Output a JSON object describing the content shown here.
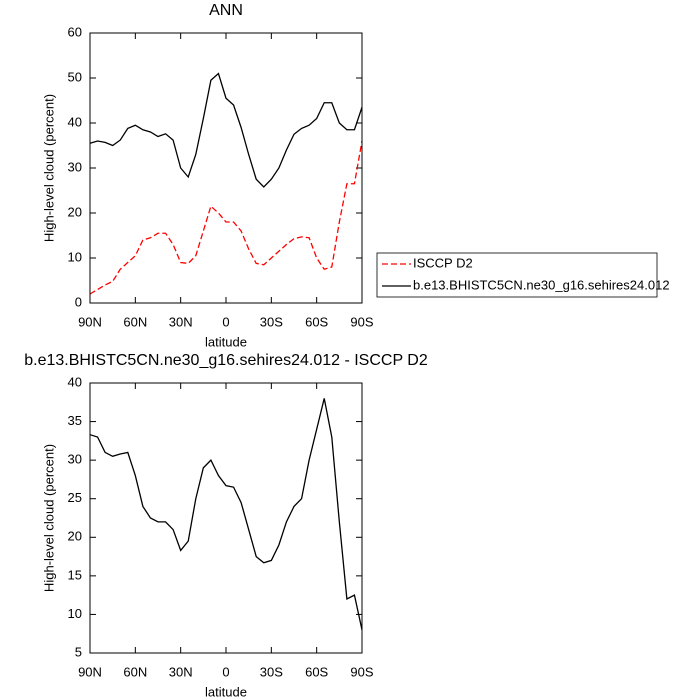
{
  "chart_data": [
    {
      "type": "line",
      "title": "ANN",
      "x_label": "latitude",
      "y_label": "High-level cloud (percent)",
      "x": [
        90,
        85,
        80,
        75,
        70,
        65,
        60,
        55,
        50,
        45,
        40,
        35,
        30,
        25,
        20,
        15,
        10,
        5,
        0,
        -5,
        -10,
        -15,
        -20,
        -25,
        -30,
        -35,
        -40,
        -45,
        -50,
        -55,
        -60,
        -65,
        -70,
        -75,
        -80,
        -85,
        -90
      ],
      "series": [
        {
          "name": "ISCCP D2",
          "color": "#ff0000",
          "style": "dashed",
          "values": [
            2,
            3,
            4,
            4.8,
            7.5,
            9,
            10.5,
            14,
            14.5,
            15.5,
            15.5,
            13,
            9,
            8.8,
            10.5,
            16,
            21.5,
            20,
            18,
            18,
            16,
            12,
            8.8,
            8.5,
            10,
            11.5,
            13,
            14.3,
            14.7,
            14.5,
            10,
            7.5,
            8,
            18,
            26.5,
            26.5,
            36
          ]
        },
        {
          "name": "b.e13.BHISTC5CN.ne30_g16.sehires24.012",
          "color": "#000000",
          "style": "solid",
          "values": [
            35.5,
            36,
            35.7,
            35,
            36.2,
            38.8,
            39.5,
            38.5,
            38,
            37,
            37.6,
            36.2,
            30,
            28,
            33,
            41,
            49.5,
            51,
            45.5,
            44,
            39,
            33,
            27.5,
            25.8,
            27.5,
            30,
            34,
            37.5,
            38.8,
            39.5,
            41,
            44.5,
            44.5,
            40,
            38.5,
            38.5,
            43.5
          ]
        }
      ],
      "xlim": [
        90,
        -90
      ],
      "xticks": [
        {
          "value": 90,
          "label": "90N"
        },
        {
          "value": 60,
          "label": "60N"
        },
        {
          "value": 30,
          "label": "30N"
        },
        0,
        {
          "value": -30,
          "label": "30S"
        },
        {
          "value": -60,
          "label": "60S"
        },
        {
          "value": -90,
          "label": "90S"
        }
      ],
      "ylim": [
        0,
        60
      ],
      "yticks": [
        0,
        10,
        20,
        30,
        40,
        50,
        60
      ],
      "legend": "right"
    },
    {
      "type": "line",
      "title": "b.e13.BHISTC5CN.ne30_g16.sehires24.012 - ISCCP D2",
      "x_label": "latitude",
      "y_label": "High-level cloud (percent)",
      "x": [
        90,
        85,
        80,
        75,
        70,
        65,
        60,
        55,
        50,
        45,
        40,
        35,
        30,
        25,
        20,
        15,
        10,
        5,
        0,
        -5,
        -10,
        -15,
        -20,
        -25,
        -30,
        -35,
        -40,
        -45,
        -50,
        -55,
        -60,
        -65,
        -70,
        -75,
        -80,
        -85,
        -90
      ],
      "series": [
        {
          "color": "#000000",
          "style": "solid",
          "values": [
            33.3,
            33,
            31,
            30.5,
            30.8,
            31,
            28,
            24,
            22.5,
            22,
            22,
            21,
            18.3,
            19.5,
            25,
            29,
            30,
            28,
            26.7,
            26.5,
            24.5,
            21,
            17.5,
            16.7,
            17,
            19,
            22,
            24,
            25,
            30,
            34,
            38,
            33,
            22,
            12,
            12.5,
            8
          ]
        }
      ],
      "xlim": [
        90,
        -90
      ],
      "xticks": [
        {
          "value": 90,
          "label": "90N"
        },
        {
          "value": 60,
          "label": "60N"
        },
        {
          "value": 30,
          "label": "30N"
        },
        0,
        {
          "value": -30,
          "label": "30S"
        },
        {
          "value": -60,
          "label": "60S"
        },
        {
          "value": -90,
          "label": "90S"
        }
      ],
      "ylim": [
        5,
        40
      ],
      "yticks": [
        5,
        10,
        15,
        20,
        25,
        30,
        35,
        40
      ]
    }
  ]
}
